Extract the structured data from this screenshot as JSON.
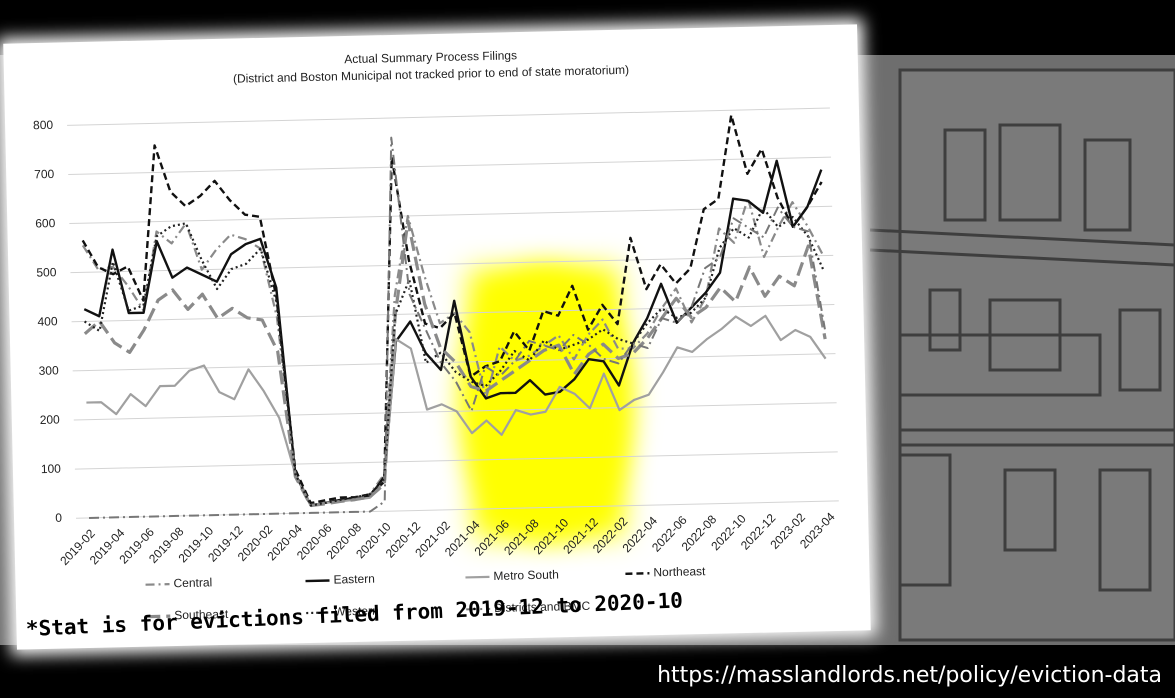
{
  "chart_data": {
    "type": "line",
    "title": "Actual Summary Process Filings",
    "subtitle": "(District and Boston Municipal not tracked prior to end of state moratorium)",
    "categories": [
      "2019-02",
      null,
      "2019-04",
      null,
      "2019-06",
      null,
      "2019-08",
      null,
      "2019-10",
      null,
      "2019-12",
      null,
      "2020-02",
      null,
      "2020-04",
      null,
      "2020-06",
      null,
      "2020-08",
      null,
      "2020-10",
      null,
      "2020-12",
      null,
      "2021-02",
      null,
      "2021-04",
      null,
      "2021-06",
      null,
      "2021-08",
      null,
      "2021-10",
      null,
      "2021-12",
      null,
      "2022-02",
      null,
      "2022-04",
      null,
      "2022-06",
      null,
      "2022-08",
      null,
      "2022-10",
      null,
      "2022-12",
      null,
      "2023-02",
      null,
      "2023-04"
    ],
    "ylim": [
      0,
      800
    ],
    "yticks": [
      0,
      100,
      200,
      300,
      400,
      500,
      600,
      700,
      800
    ],
    "grid": true,
    "series": [
      {
        "name": "Central",
        "color": "#8a8a8a",
        "dash": "9 4 2 4",
        "width": 2.2,
        "values": [
          555,
          505,
          510,
          470,
          420,
          580,
          555,
          595,
          500,
          540,
          570,
          560,
          540,
          400,
          85,
          15,
          20,
          25,
          30,
          35,
          75,
          440,
          600,
          480,
          380,
          400,
          360,
          225,
          330,
          300,
          310,
          330,
          350,
          300,
          350,
          380,
          320,
          320,
          350,
          400,
          440,
          370,
          420,
          560,
          530,
          620,
          500,
          560,
          610,
          560,
          500
        ]
      },
      {
        "name": "Eastern",
        "color": "#111111",
        "dash": "none",
        "width": 2.4,
        "values": [
          425,
          410,
          545,
          415,
          415,
          560,
          485,
          505,
          490,
          475,
          530,
          550,
          560,
          460,
          80,
          15,
          20,
          25,
          28,
          30,
          70,
          345,
          385,
          320,
          285,
          425,
          270,
          225,
          235,
          235,
          260,
          230,
          235,
          260,
          300,
          295,
          245,
          330,
          380,
          450,
          370,
          400,
          430,
          470,
          620,
          615,
          590,
          695,
          560,
          600,
          675
        ]
      },
      {
        "name": "Metro South",
        "color": "#a0a0a0",
        "dash": "none",
        "width": 2.2,
        "values": [
          235,
          235,
          210,
          250,
          225,
          265,
          265,
          295,
          305,
          250,
          235,
          295,
          250,
          195,
          80,
          15,
          20,
          22,
          25,
          28,
          60,
          350,
          330,
          205,
          215,
          200,
          155,
          180,
          150,
          200,
          190,
          195,
          245,
          230,
          200,
          270,
          195,
          215,
          225,
          270,
          320,
          310,
          335,
          355,
          380,
          360,
          380,
          330,
          350,
          335,
          290
        ]
      },
      {
        "name": "Northeast",
        "color": "#111111",
        "dash": "7 4",
        "width": 2.4,
        "values": [
          565,
          510,
          495,
          510,
          440,
          755,
          660,
          630,
          650,
          680,
          640,
          610,
          605,
          440,
          90,
          20,
          25,
          30,
          30,
          35,
          60,
          720,
          510,
          380,
          370,
          400,
          270,
          290,
          300,
          360,
          320,
          400,
          390,
          450,
          360,
          410,
          370,
          545,
          440,
          490,
          450,
          480,
          600,
          620,
          790,
          670,
          720,
          620,
          560,
          600,
          650
        ]
      },
      {
        "name": "Southeast",
        "color": "#8a8a8a",
        "dash": "14 6",
        "width": 3.2,
        "values": [
          375,
          400,
          355,
          335,
          380,
          440,
          460,
          420,
          450,
          400,
          420,
          400,
          395,
          330,
          75,
          15,
          18,
          22,
          25,
          30,
          55,
          400,
          590,
          420,
          330,
          300,
          250,
          240,
          260,
          280,
          300,
          320,
          330,
          270,
          310,
          330,
          300,
          310,
          340,
          380,
          420,
          380,
          400,
          440,
          410,
          480,
          420,
          460,
          440,
          520,
          330
        ]
      },
      {
        "name": "Western",
        "color": "#222222",
        "dash": "2 3",
        "width": 2.2,
        "values": [
          400,
          380,
          520,
          420,
          430,
          570,
          590,
          595,
          520,
          460,
          500,
          510,
          540,
          430,
          80,
          15,
          20,
          25,
          30,
          35,
          65,
          400,
          470,
          300,
          320,
          280,
          260,
          250,
          280,
          320,
          300,
          340,
          320,
          330,
          340,
          360,
          340,
          330,
          370,
          400,
          380,
          390,
          420,
          520,
          560,
          540,
          600,
          560,
          580,
          540,
          470
        ]
      },
      {
        "name": "Districts and BMC",
        "color": "#777777",
        "dash": "10 4 2 4",
        "width": 2,
        "values": [
          0,
          0,
          0,
          0,
          0,
          0,
          0,
          0,
          0,
          0,
          0,
          0,
          0,
          0,
          0,
          0,
          0,
          0,
          0,
          0,
          20,
          760,
          440,
          370,
          300,
          260,
          200,
          290,
          270,
          300,
          340,
          330,
          320,
          350,
          330,
          300,
          290,
          330,
          320,
          380,
          370,
          400,
          480,
          500,
          580,
          560,
          540,
          600,
          560,
          550,
          350
        ]
      }
    ]
  },
  "footnote": "*Stat is for evictions filed from 2019-12 to 2020-10",
  "url": "https://masslandlords.net/policy/eviction-data"
}
